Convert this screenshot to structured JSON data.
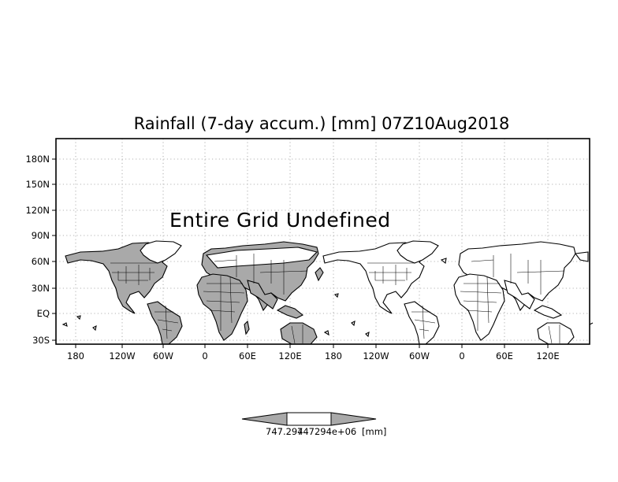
{
  "title": "Rainfall (7-day accum.) [mm] 07Z10Aug2018",
  "overlay_message": "Entire Grid Undefined",
  "axes": {
    "x_tick_labels": [
      "180",
      "120W",
      "60W",
      "0",
      "60E",
      "120E",
      "180",
      "120W",
      "60W",
      "0",
      "60E",
      "120E"
    ],
    "y_tick_labels": [
      "180N",
      "150N",
      "120N",
      "90N",
      "60N",
      "30N",
      "EQ",
      "30S"
    ]
  },
  "colorbar": {
    "left_value_label": "747.294",
    "right_value_label": "747294e+06",
    "unit_label": "[mm]"
  },
  "colors": {
    "background": "#ffffff",
    "land_shaded": "#a9a9a9",
    "coastline": "#000000",
    "colorbar_fill": "#a9a9a9"
  }
}
